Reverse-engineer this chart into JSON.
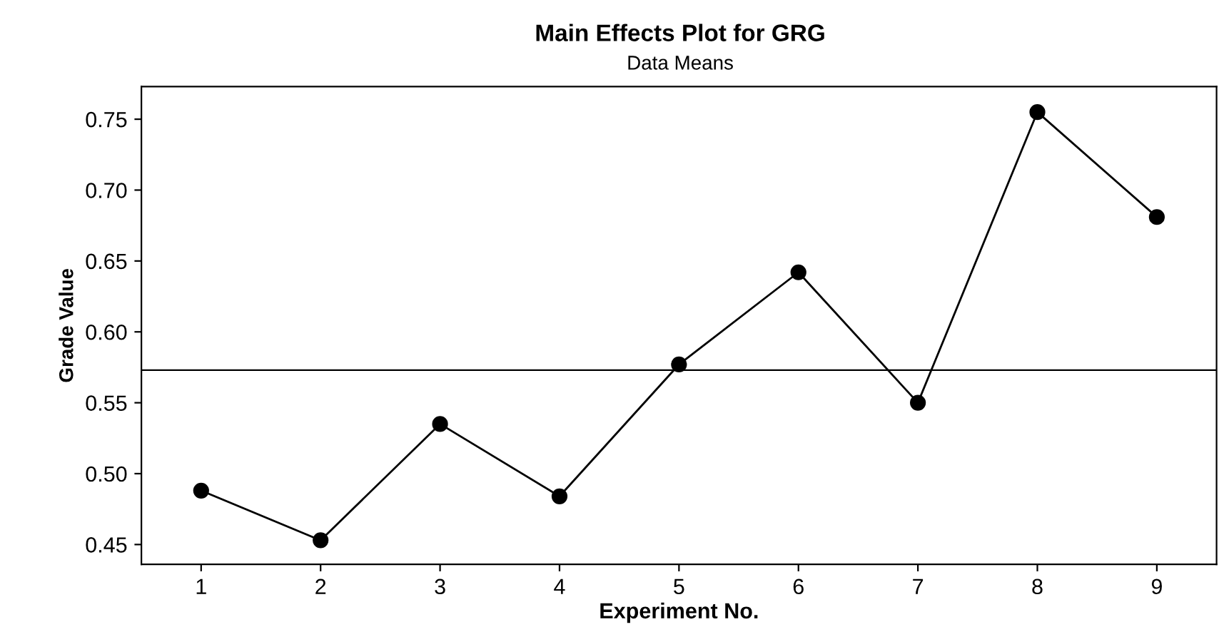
{
  "chart_data": {
    "type": "line",
    "title": "Main Effects Plot for GRG",
    "subtitle": "Data Means",
    "xlabel": "Experiment No.",
    "ylabel": "Grade Value",
    "x": [
      1,
      2,
      3,
      4,
      5,
      6,
      7,
      8,
      9
    ],
    "series": [
      {
        "color": "#000000",
        "values": [
          0.488,
          0.453,
          0.535,
          0.484,
          0.577,
          0.642,
          0.55,
          0.755,
          0.681
        ]
      }
    ],
    "xlim": [
      0.5,
      9.5
    ],
    "xticks": [
      1,
      2,
      3,
      4,
      5,
      6,
      7,
      8,
      9
    ],
    "ylim": [
      0.436,
      0.773
    ],
    "yticks": [
      0.45,
      {
        "value": 0.5,
        "label": "0.50"
      },
      0.55,
      {
        "value": 0.6,
        "label": "0.60"
      },
      0.65,
      {
        "value": 0.7,
        "label": "0.70"
      },
      0.75
    ],
    "ref_lines": [
      {
        "axis": "y",
        "value": 0.573,
        "label": null,
        "color": "#000000"
      }
    ],
    "marker": "circle",
    "line_style": "solid",
    "grid": false,
    "legend": false
  }
}
